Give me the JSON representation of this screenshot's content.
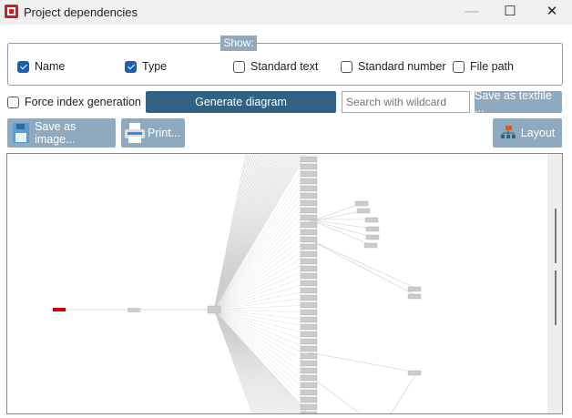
{
  "window": {
    "title": "Project dependencies",
    "minimize": "—",
    "maximize": "☐",
    "close": "✕"
  },
  "show": {
    "label": "Show:",
    "options": [
      {
        "label": "Name",
        "checked": true
      },
      {
        "label": "Type",
        "checked": true
      },
      {
        "label": "Standard text",
        "checked": false
      },
      {
        "label": "Standard number",
        "checked": false
      },
      {
        "label": "File path",
        "checked": false
      }
    ]
  },
  "force_index": {
    "label": "Force index generation",
    "checked": false
  },
  "toolbar": {
    "generate": "Generate diagram",
    "search_placeholder": "Search with wildcard",
    "save_text": "Save as textfile ...",
    "save_image": "Save as image...",
    "print": "Print...",
    "layout": "Layout"
  },
  "colors": {
    "accent": "#2f6283",
    "button": "#8fa9be",
    "root_node": "#d00000"
  }
}
